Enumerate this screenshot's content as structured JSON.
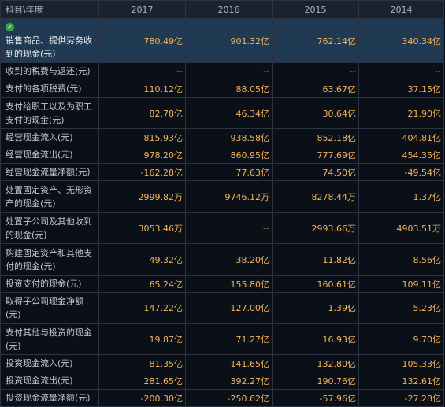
{
  "header": {
    "corner": "科目\\年度",
    "years": [
      "2017",
      "2016",
      "2015",
      "2014"
    ]
  },
  "rows": [
    {
      "label": "销售商品、提供劳务收到的现金(元)",
      "values": [
        "780.49亿",
        "901.32亿",
        "762.14亿",
        "340.34亿"
      ]
    },
    {
      "label": "收到的税费与返还(元)",
      "values": [
        "--",
        "--",
        "--",
        "--"
      ]
    },
    {
      "label": "支付的各项税费(元)",
      "values": [
        "110.12亿",
        "88.05亿",
        "63.67亿",
        "37.15亿"
      ]
    },
    {
      "label": "支付给职工以及为职工支付的现金(元)",
      "values": [
        "82.78亿",
        "46.34亿",
        "30.64亿",
        "21.90亿"
      ]
    },
    {
      "label": "经营现金流入(元)",
      "values": [
        "815.93亿",
        "938.58亿",
        "852.18亿",
        "404.81亿"
      ]
    },
    {
      "label": "经营现金流出(元)",
      "values": [
        "978.20亿",
        "860.95亿",
        "777.69亿",
        "454.35亿"
      ]
    },
    {
      "label": "经营现金流量净额(元)",
      "values": [
        "-162.28亿",
        "77.63亿",
        "74.50亿",
        "-49.54亿"
      ]
    },
    {
      "label": "处置固定资产、无形资产的现金(元)",
      "values": [
        "2999.82万",
        "9746.12万",
        "8278.44万",
        "1.37亿"
      ]
    },
    {
      "label": "处置子公司及其他收到的现金(元)",
      "values": [
        "3053.46万",
        "--",
        "2993.66万",
        "4903.51万"
      ]
    },
    {
      "label": "购建固定资产和其他支付的现金(元)",
      "values": [
        "49.32亿",
        "38.20亿",
        "11.82亿",
        "8.56亿"
      ]
    },
    {
      "label": "投资支付的现金(元)",
      "values": [
        "65.24亿",
        "155.80亿",
        "160.61亿",
        "109.11亿"
      ]
    },
    {
      "label": "取得子公司现金净额(元)",
      "values": [
        "147.22亿",
        "127.00亿",
        "1.39亿",
        "5.23亿"
      ]
    },
    {
      "label": "支付其他与投资的现金(元)",
      "values": [
        "19.87亿",
        "71.27亿",
        "16.93亿",
        "9.70亿"
      ]
    },
    {
      "label": "投资现金流入(元)",
      "values": [
        "81.35亿",
        "141.65亿",
        "132.80亿",
        "105.33亿"
      ]
    },
    {
      "label": "投资现金流出(元)",
      "values": [
        "281.65亿",
        "392.27亿",
        "190.76亿",
        "132.61亿"
      ]
    },
    {
      "label": "投资现金流量净额(元)",
      "values": [
        "-200.30亿",
        "-250.62亿",
        "-57.96亿",
        "-27.28亿"
      ]
    }
  ],
  "colors": {
    "background": "#0b0f17",
    "value": "#f2b45a",
    "label": "#c0c8d2",
    "highlight_row": "#1f3a52",
    "check": "#3da34a"
  },
  "icons": {
    "first_row": "check-circle-icon"
  }
}
